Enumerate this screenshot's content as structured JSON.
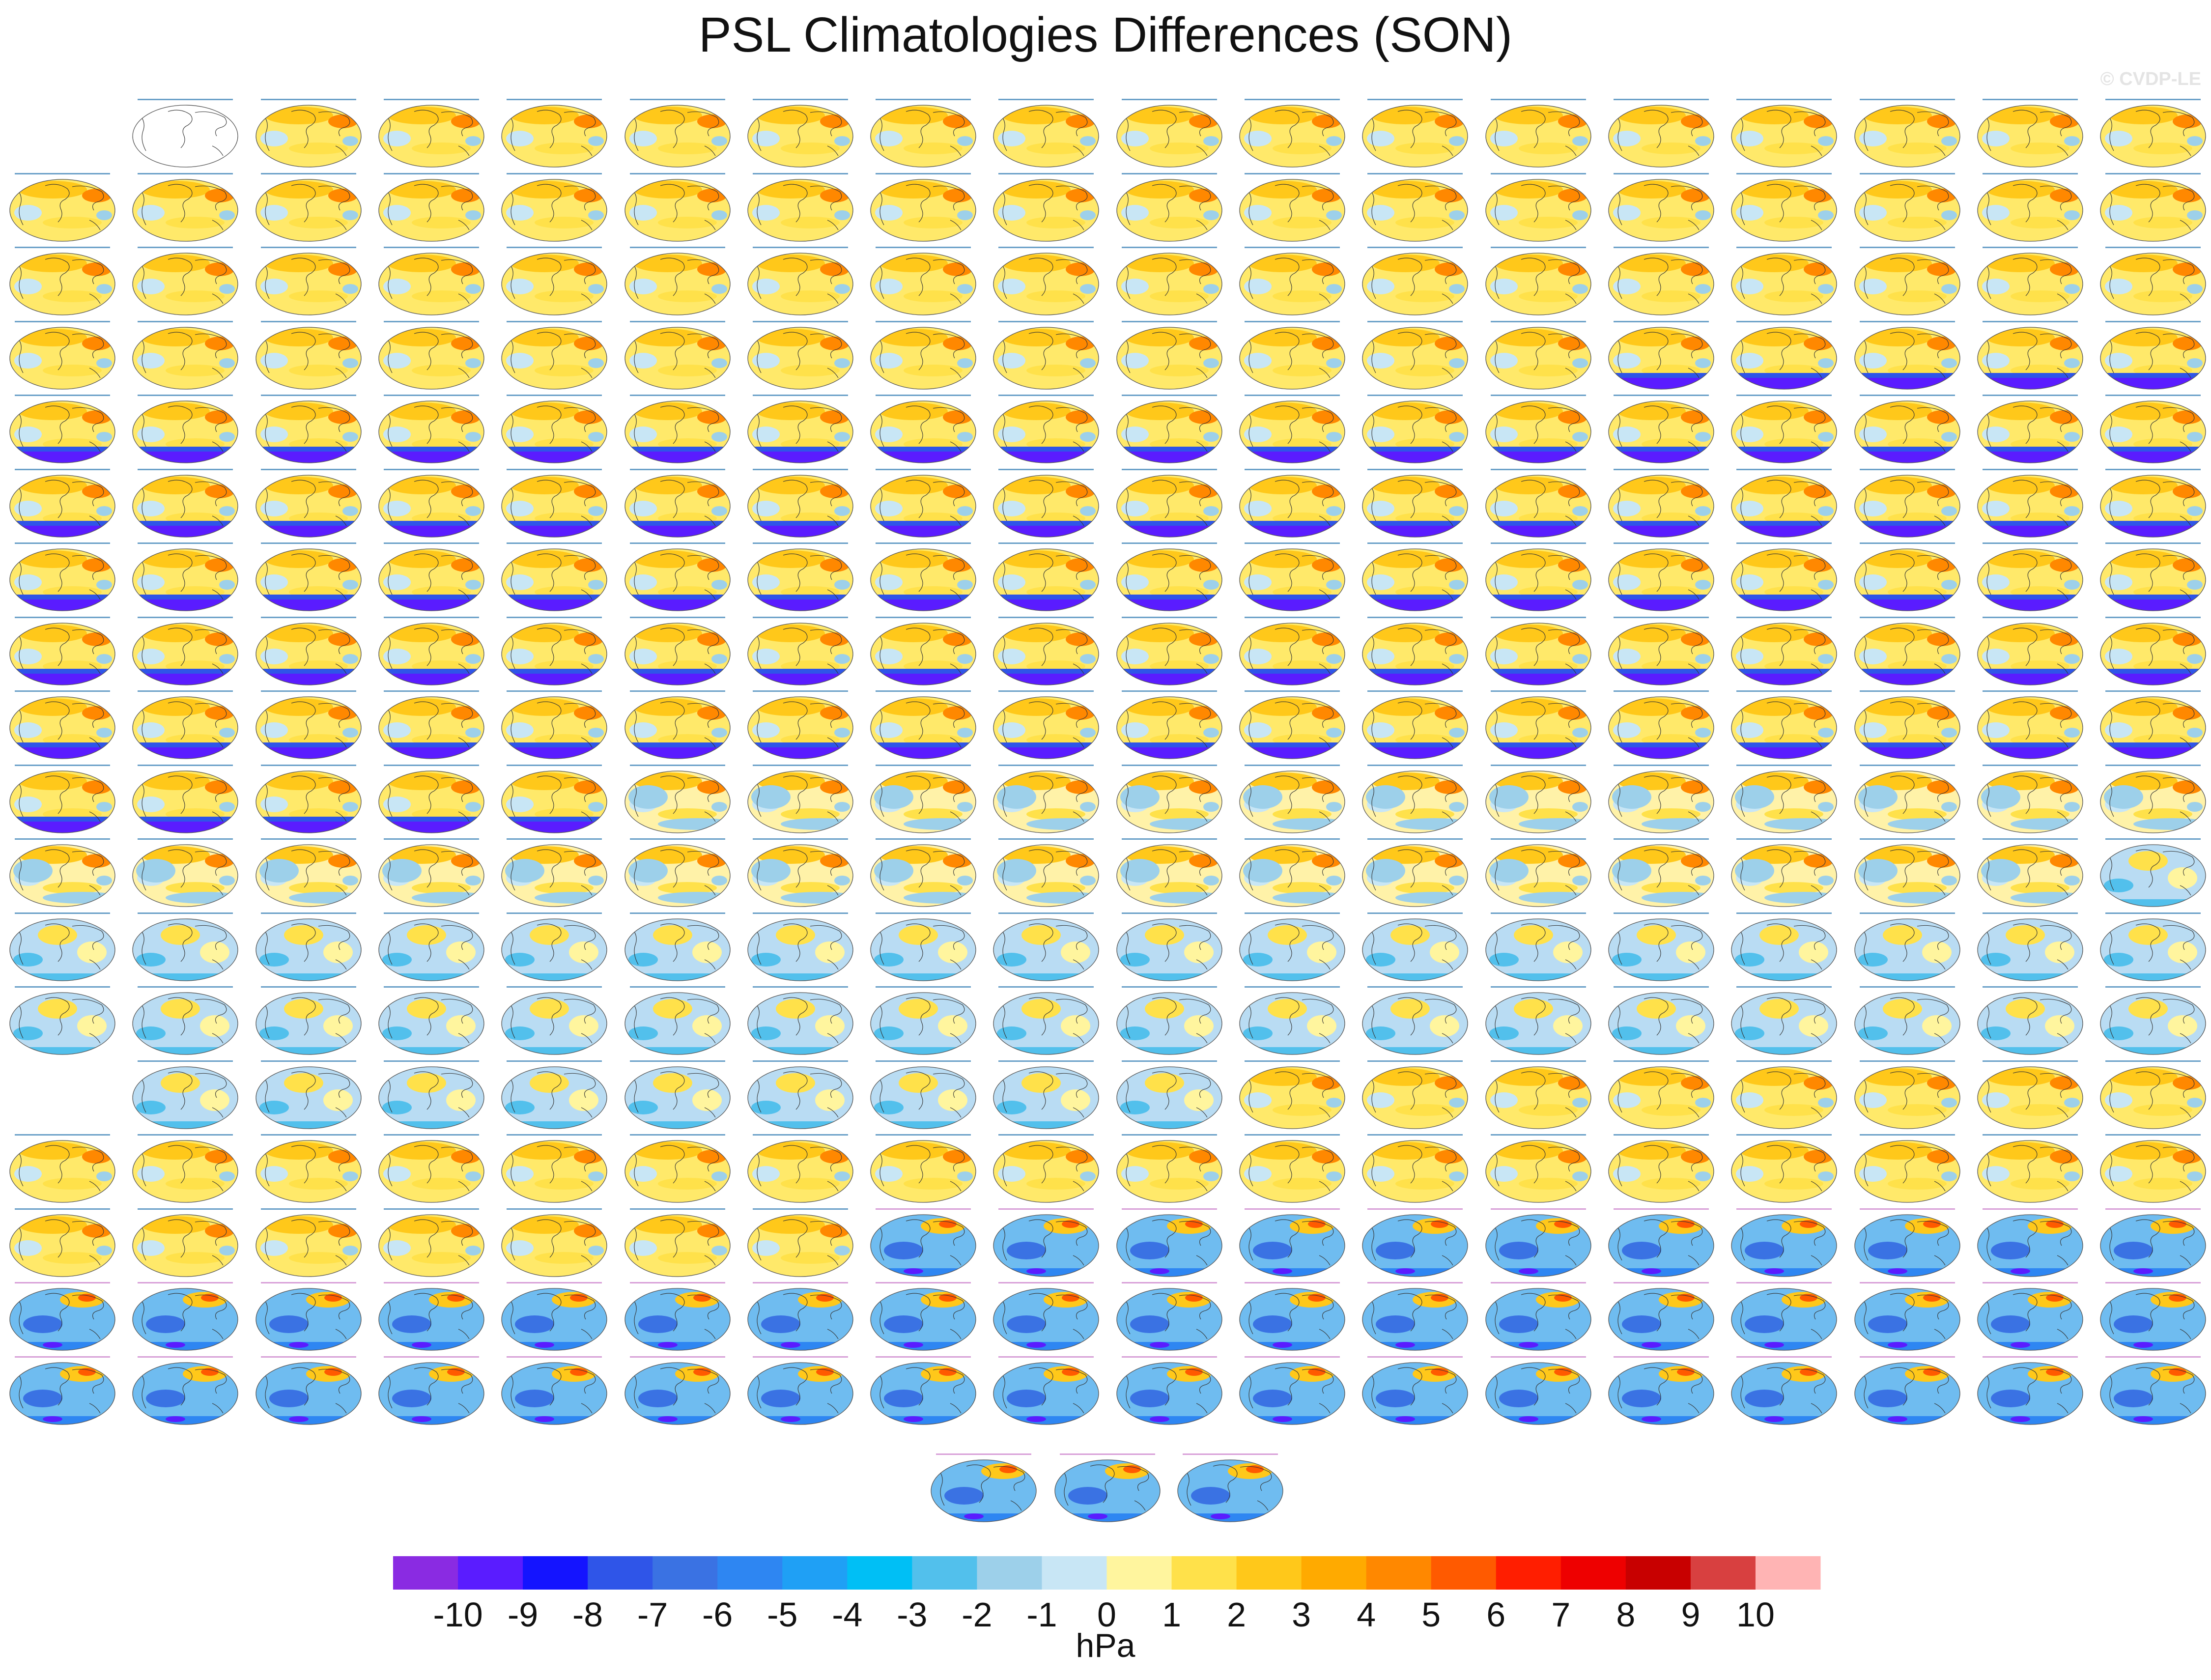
{
  "title": "PSL Climatologies Differences (SON)",
  "watermark": "© CVDP-LE",
  "chart_data": {
    "type": "heatmap",
    "title": "PSL Climatologies Differences (SON)",
    "variable": "PSL",
    "season": "SON",
    "units": "hPa",
    "colorbar": {
      "label": "hPa",
      "tick_labels": [
        "-10",
        "-9",
        "-8",
        "-7",
        "-6",
        "-5",
        "-4",
        "-3",
        "-2",
        "-1",
        "0",
        "1",
        "2",
        "3",
        "4",
        "5",
        "6",
        "7",
        "8",
        "9",
        "10"
      ],
      "levels": [
        -10,
        -9,
        -8,
        -7,
        -6,
        -5,
        -4,
        -3,
        -2,
        -1,
        0,
        1,
        2,
        3,
        4,
        5,
        6,
        7,
        8,
        9,
        10
      ],
      "colors": [
        "#8a2be2",
        "#5a1cff",
        "#1414ff",
        "#2f55e8",
        "#3a72e3",
        "#2e86f2",
        "#1fa0f5",
        "#00bff5",
        "#52c0ec",
        "#9dd0ea",
        "#c8e6f5",
        "#fff59e",
        "#ffe14a",
        "#ffc81a",
        "#ffaa00",
        "#ff8800",
        "#ff5a00",
        "#ff1e00",
        "#ee0000",
        "#c80000",
        "#d84040",
        "#ffb4b4"
      ]
    },
    "panel_grid": {
      "columns": 18,
      "rows": 18,
      "extra_row_panels": 3
    },
    "panel_groups": [
      {
        "pattern": "outline"
      },
      {
        "pattern": "warm"
      },
      {
        "pattern": "warm_south"
      },
      {
        "pattern": "mixed"
      },
      {
        "pattern": "cool_mixed"
      },
      {
        "pattern": "cool"
      },
      {
        "pattern": "warm"
      },
      {
        "pattern": "blue"
      }
    ]
  }
}
